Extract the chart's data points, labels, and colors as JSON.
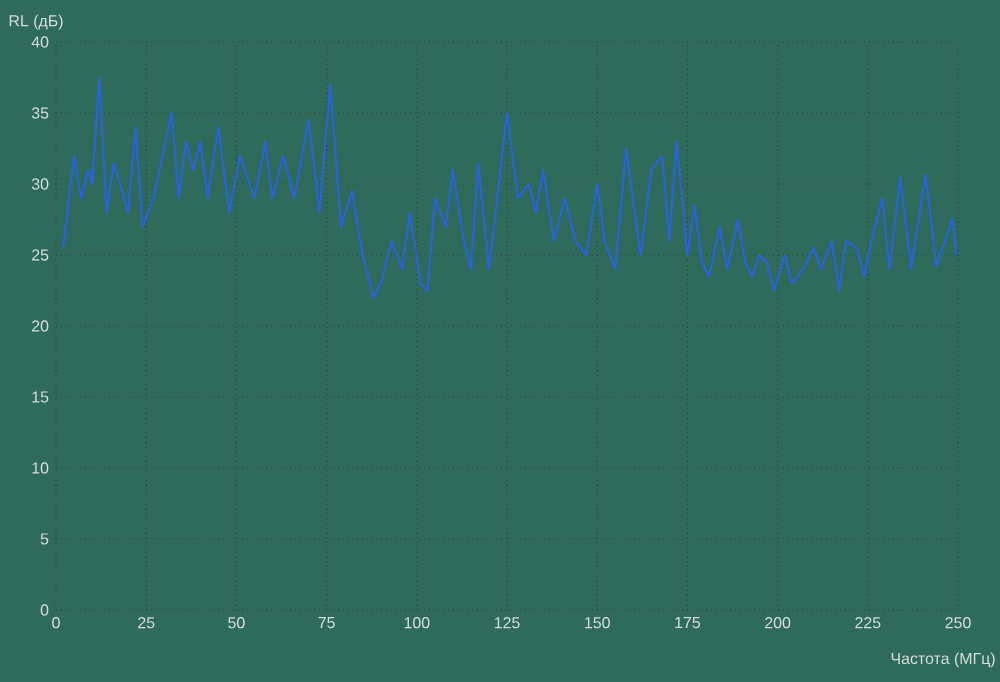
{
  "chart_data": {
    "type": "line",
    "xlabel": "Частота (МГц)",
    "ylabel": "RL (дБ)",
    "xlim": [
      0,
      250
    ],
    "ylim": [
      0,
      40
    ],
    "xticks": [
      0,
      25,
      50,
      75,
      100,
      125,
      150,
      175,
      200,
      225,
      250
    ],
    "yticks": [
      0,
      5,
      10,
      15,
      20,
      25,
      30,
      35,
      40
    ],
    "grid": true,
    "marker": "none",
    "line_style": "solid",
    "series": [
      {
        "color": "#2a62d8",
        "x": [
          2,
          5,
          7,
          9,
          10,
          12,
          14,
          16,
          20,
          22,
          24,
          27,
          32,
          34,
          36,
          38,
          40,
          42,
          45,
          48,
          51,
          55,
          58,
          60,
          63,
          66,
          70,
          73,
          76,
          79,
          82,
          85,
          88,
          90,
          93,
          96,
          98,
          101,
          103,
          105,
          108,
          110,
          113,
          115,
          117,
          120,
          125,
          128,
          131,
          133,
          135,
          138,
          141,
          144,
          147,
          150,
          152,
          155,
          158,
          162,
          165,
          168,
          170,
          172,
          175,
          177,
          179,
          181,
          184,
          186,
          189,
          191,
          193,
          195,
          197,
          199,
          202,
          204,
          207,
          210,
          212,
          215,
          217,
          219,
          222,
          224,
          226,
          229,
          231,
          234,
          237,
          241,
          244,
          248.5,
          249.5
        ],
        "values": [
          25.5,
          32,
          29,
          31,
          30,
          37.5,
          28,
          31.5,
          28,
          34,
          27,
          29,
          35,
          29,
          33,
          31,
          33,
          29,
          34,
          28,
          32,
          29,
          33,
          29,
          32,
          29,
          34.5,
          28,
          37,
          27,
          29.5,
          25,
          22,
          23,
          26,
          24,
          28,
          23,
          22.5,
          29,
          27,
          31,
          26,
          24,
          31.5,
          24,
          35,
          29,
          30,
          28,
          31,
          26,
          29,
          26,
          25,
          30,
          26,
          24,
          32.5,
          25,
          31,
          32,
          26,
          33,
          25,
          28.5,
          24.5,
          23.5,
          27,
          24,
          27.5,
          24.5,
          23.5,
          25,
          24.5,
          22.5,
          25,
          23,
          24,
          25.5,
          24,
          26,
          22.5,
          26,
          25.5,
          23.5,
          26,
          29,
          24,
          30.5,
          24,
          30.7,
          24.2,
          27.6,
          25
        ]
      }
    ]
  }
}
